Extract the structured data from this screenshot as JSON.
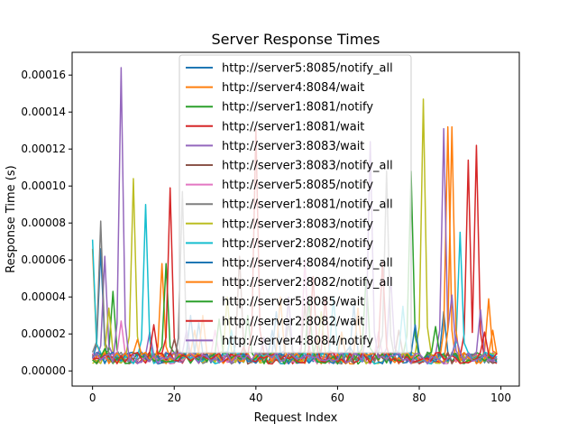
{
  "chart_data": {
    "type": "line",
    "title": "Server Response Times",
    "xlabel": "Request Index",
    "ylabel": "Response Time (s)",
    "xlim": [
      -5,
      104.5
    ],
    "ylim": [
      -8.2e-06,
      0.0001723
    ],
    "x_ticks": [
      0,
      20,
      40,
      60,
      80,
      100
    ],
    "y_ticks": [
      0,
      2e-05,
      4e-05,
      6e-05,
      8e-05,
      0.0001,
      0.00012,
      0.00014,
      0.00016
    ],
    "y_tick_labels": [
      "0.00000",
      "0.00002",
      "0.00004",
      "0.00006",
      "0.00008",
      "0.00010",
      "0.00012",
      "0.00014",
      "0.00016"
    ],
    "x_tick_labels": [
      "0",
      "20",
      "40",
      "60",
      "80",
      "100"
    ],
    "legend_position": "top-center",
    "grid": false,
    "baseline": 7e-06,
    "series": [
      {
        "name": "http://server5:8085/notify_all",
        "color": "#1f77b4",
        "peaks": [
          [
            2,
            6.6e-05
          ],
          [
            26,
            2.6e-05
          ],
          [
            45,
            3.2e-05
          ],
          [
            64,
            3.6e-05
          ],
          [
            86,
            3.2e-05
          ]
        ]
      },
      {
        "name": "http://server4:8084/wait",
        "color": "#ff7f0e",
        "peaks": [
          [
            0,
            6.6e-05
          ],
          [
            17,
            5.8e-05
          ],
          [
            25,
            2.2e-05
          ],
          [
            61,
            2.1e-05
          ],
          [
            87,
            0.000132
          ],
          [
            97,
            3.9e-05
          ]
        ]
      },
      {
        "name": "http://server1:8081/notify",
        "color": "#2ca02c",
        "peaks": [
          [
            5,
            4.3e-05
          ],
          [
            18,
            5.8e-05
          ],
          [
            38,
            3e-05
          ],
          [
            55,
            1.7e-05
          ],
          [
            78,
            0.000108
          ]
        ]
      },
      {
        "name": "http://server1:8081/wait",
        "color": "#d62728",
        "peaks": [
          [
            19,
            9.9e-05
          ],
          [
            40,
            0.000131
          ],
          [
            57,
            4e-05
          ],
          [
            92,
            0.000114
          ],
          [
            94,
            0.000122
          ]
        ]
      },
      {
        "name": "http://server3:8083/wait",
        "color": "#9467bd",
        "peaks": [
          [
            3,
            6.2e-05
          ],
          [
            14,
            2.1e-05
          ],
          [
            48,
            4e-05
          ],
          [
            73,
            5.1e-05
          ],
          [
            86,
            0.000131
          ],
          [
            88,
            4.1e-05
          ],
          [
            95,
            3.3e-05
          ]
        ]
      },
      {
        "name": "http://server3:8083/notify_all",
        "color": "#8c564b",
        "peaks": [
          [
            20,
            1.7e-05
          ],
          [
            36,
            6.2e-05
          ],
          [
            52,
            3.6e-05
          ],
          [
            75,
            2.2e-05
          ]
        ]
      },
      {
        "name": "http://server5:8085/notify",
        "color": "#e377c2",
        "peaks": [
          [
            7,
            2.7e-05
          ],
          [
            30,
            2.2e-05
          ],
          [
            52,
            6e-05
          ],
          [
            70,
            2.1e-05
          ]
        ]
      },
      {
        "name": "http://server1:8081/notify_all",
        "color": "#7f7f7f",
        "peaks": [
          [
            2,
            8.1e-05
          ],
          [
            22,
            9.7e-05
          ],
          [
            48,
            2.7e-05
          ],
          [
            72,
            0.000108
          ]
        ]
      },
      {
        "name": "http://server3:8083/notify",
        "color": "#bcbd22",
        "peaks": [
          [
            4,
            3.4e-05
          ],
          [
            10,
            0.000104
          ],
          [
            33,
            4e-05
          ],
          [
            56,
            3.2e-05
          ],
          [
            81,
            0.000147
          ]
        ]
      },
      {
        "name": "http://server2:8082/notify",
        "color": "#17becf",
        "peaks": [
          [
            0,
            7.1e-05
          ],
          [
            13,
            9e-05
          ],
          [
            34,
            2.2e-05
          ],
          [
            59,
            4e-05
          ],
          [
            76,
            3.5e-05
          ],
          [
            90,
            7.5e-05
          ]
        ]
      },
      {
        "name": "http://server4:8084/notify_all",
        "color": "#1f77b4",
        "peaks": [
          [
            1,
            1e-05
          ],
          [
            24,
            3e-05
          ],
          [
            44,
            2.2e-05
          ],
          [
            63,
            1.3e-05
          ],
          [
            79,
            2.5e-05
          ]
        ]
      },
      {
        "name": "http://server2:8082/notify_all",
        "color": "#ff7f0e",
        "peaks": [
          [
            11,
            1.7e-05
          ],
          [
            27,
            3e-05
          ],
          [
            46,
            4e-05
          ],
          [
            65,
            3.4e-05
          ],
          [
            88,
            0.000132
          ],
          [
            98,
            2.2e-05
          ]
        ]
      },
      {
        "name": "http://server5:8085/wait",
        "color": "#2ca02c",
        "peaks": [
          [
            3,
            1.2e-05
          ],
          [
            31,
            2.8e-05
          ],
          [
            53,
            3.8e-05
          ],
          [
            67,
            5.1e-05
          ],
          [
            84,
            2.4e-05
          ]
        ]
      },
      {
        "name": "http://server2:8082/wait",
        "color": "#d62728",
        "peaks": [
          [
            15,
            2.5e-05
          ],
          [
            37,
            1.3e-05
          ],
          [
            54,
            5.1e-05
          ],
          [
            71,
            5.9e-05
          ],
          [
            96,
            2.1e-05
          ]
        ]
      },
      {
        "name": "http://server4:8084/notify",
        "color": "#9467bd",
        "peaks": [
          [
            7,
            0.000164
          ],
          [
            23,
            2.2e-05
          ],
          [
            42,
            1.8e-05
          ],
          [
            68,
            0.000124
          ],
          [
            89,
            1.8e-05
          ]
        ]
      }
    ]
  }
}
